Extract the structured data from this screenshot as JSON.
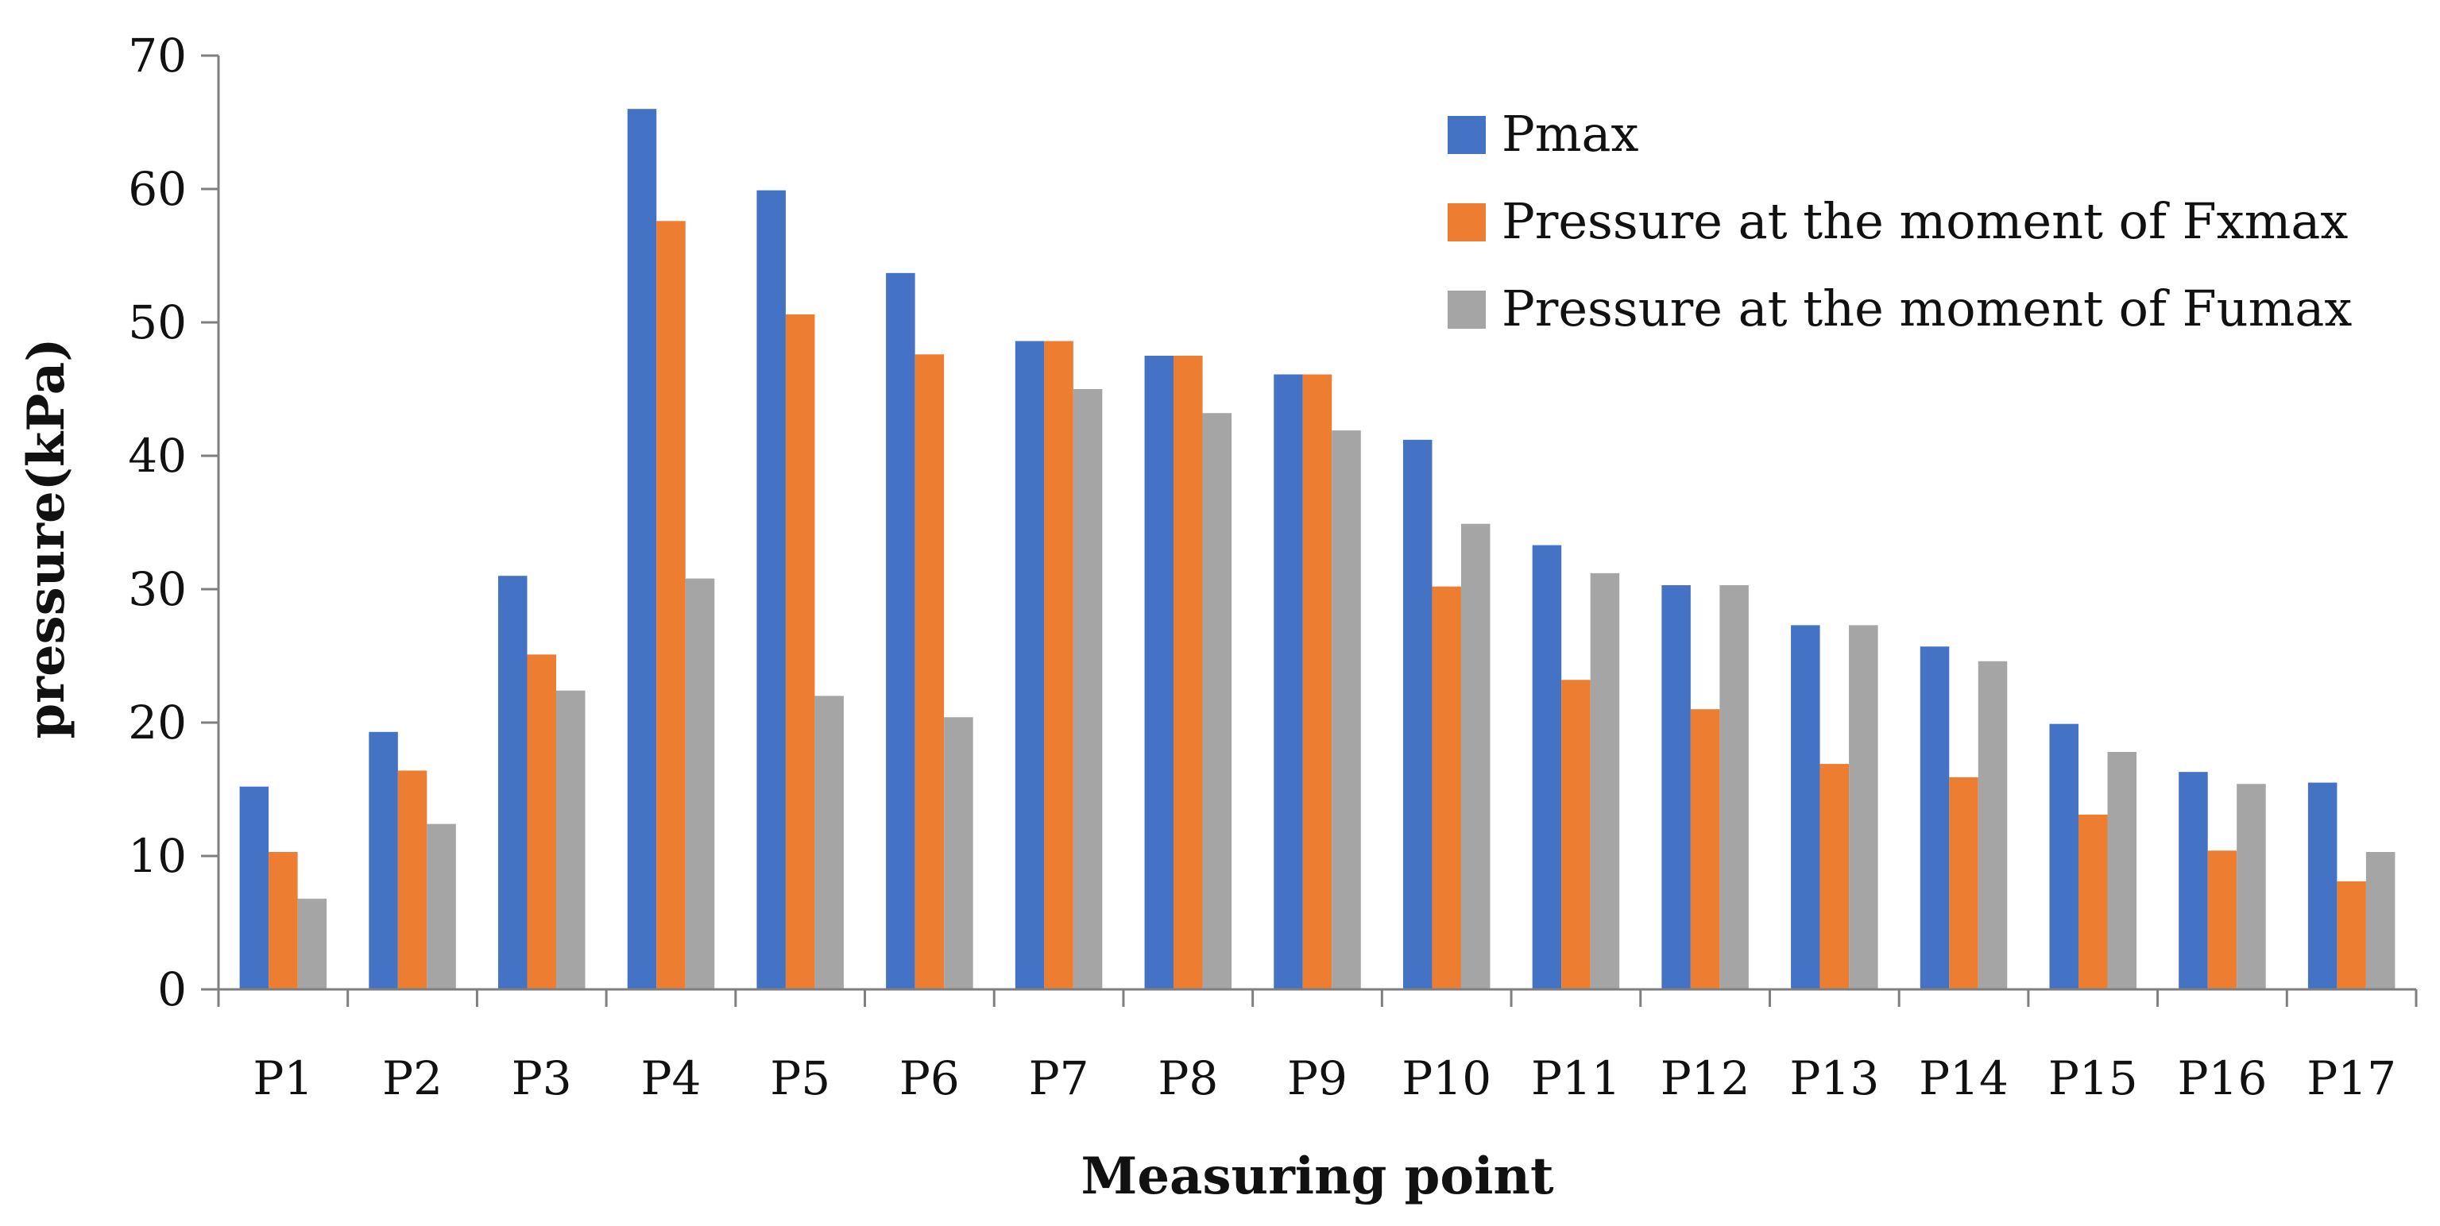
{
  "chart_data": {
    "type": "bar",
    "title": "",
    "xlabel": "Measuring point",
    "ylabel": "pressure(kPa)",
    "ylim": [
      0,
      70
    ],
    "yticks": [
      0,
      10,
      20,
      30,
      40,
      50,
      60,
      70
    ],
    "grid": false,
    "legend_position": "top-right",
    "categories": [
      "P1",
      "P2",
      "P3",
      "P4",
      "P5",
      "P6",
      "P7",
      "P8",
      "P9",
      "P10",
      "P11",
      "P12",
      "P13",
      "P14",
      "P15",
      "P16",
      "P17"
    ],
    "series": [
      {
        "name": "Pmax",
        "color": "#4472C4",
        "values": [
          15.2,
          19.3,
          31.0,
          66.0,
          59.9,
          53.7,
          48.6,
          47.5,
          46.1,
          41.2,
          33.3,
          30.3,
          27.3,
          25.7,
          19.9,
          16.3,
          15.5
        ]
      },
      {
        "name": "Pressure at the moment of Fxmax",
        "color": "#ED7D31",
        "values": [
          10.3,
          16.4,
          25.1,
          57.6,
          50.6,
          47.6,
          48.6,
          47.5,
          46.1,
          30.2,
          23.2,
          21.0,
          16.9,
          15.9,
          13.1,
          10.4,
          8.1
        ]
      },
      {
        "name": "Pressure at the moment of Fumax",
        "color": "#A5A5A5",
        "values": [
          6.8,
          12.4,
          22.4,
          30.8,
          22.0,
          20.4,
          45.0,
          43.2,
          41.9,
          34.9,
          31.2,
          30.3,
          27.3,
          24.6,
          17.8,
          15.4,
          10.3
        ]
      }
    ]
  }
}
